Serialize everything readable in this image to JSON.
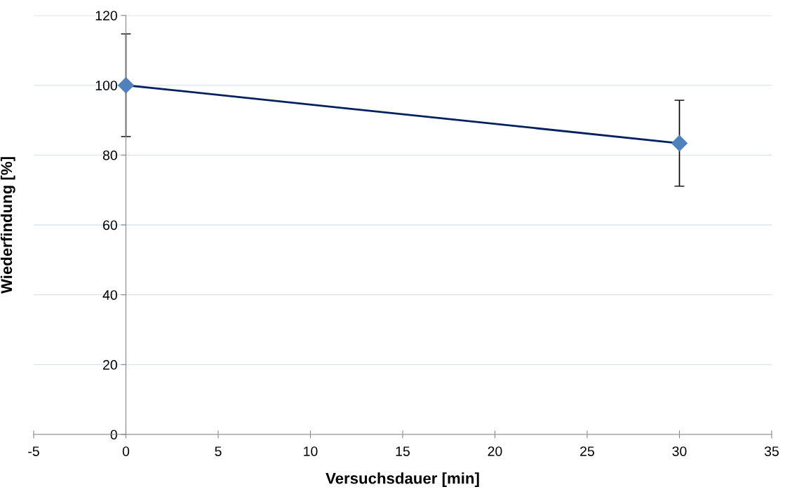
{
  "chart_data": {
    "type": "line",
    "xlabel": "Versuchsdauer [min]",
    "ylabel": "Wiederfindung [%]",
    "x": [
      0,
      30
    ],
    "series": [
      {
        "color": "#002060",
        "colors": [
          "#4f81bd",
          "#4f81bd"
        ],
        "values": [
          100,
          83.4
        ],
        "errors": [
          14.7,
          12.3
        ]
      }
    ],
    "marker": "diamond",
    "line_style": "solid",
    "grid": "y",
    "xlim": [
      -5,
      35
    ],
    "xticks": [
      {
        "value": -5,
        "label": "-5"
      },
      0,
      5,
      10,
      15,
      20,
      25,
      30,
      35
    ],
    "ylim": [
      0,
      120
    ],
    "yticks": [
      0,
      20,
      40,
      60,
      80,
      100,
      120
    ]
  }
}
